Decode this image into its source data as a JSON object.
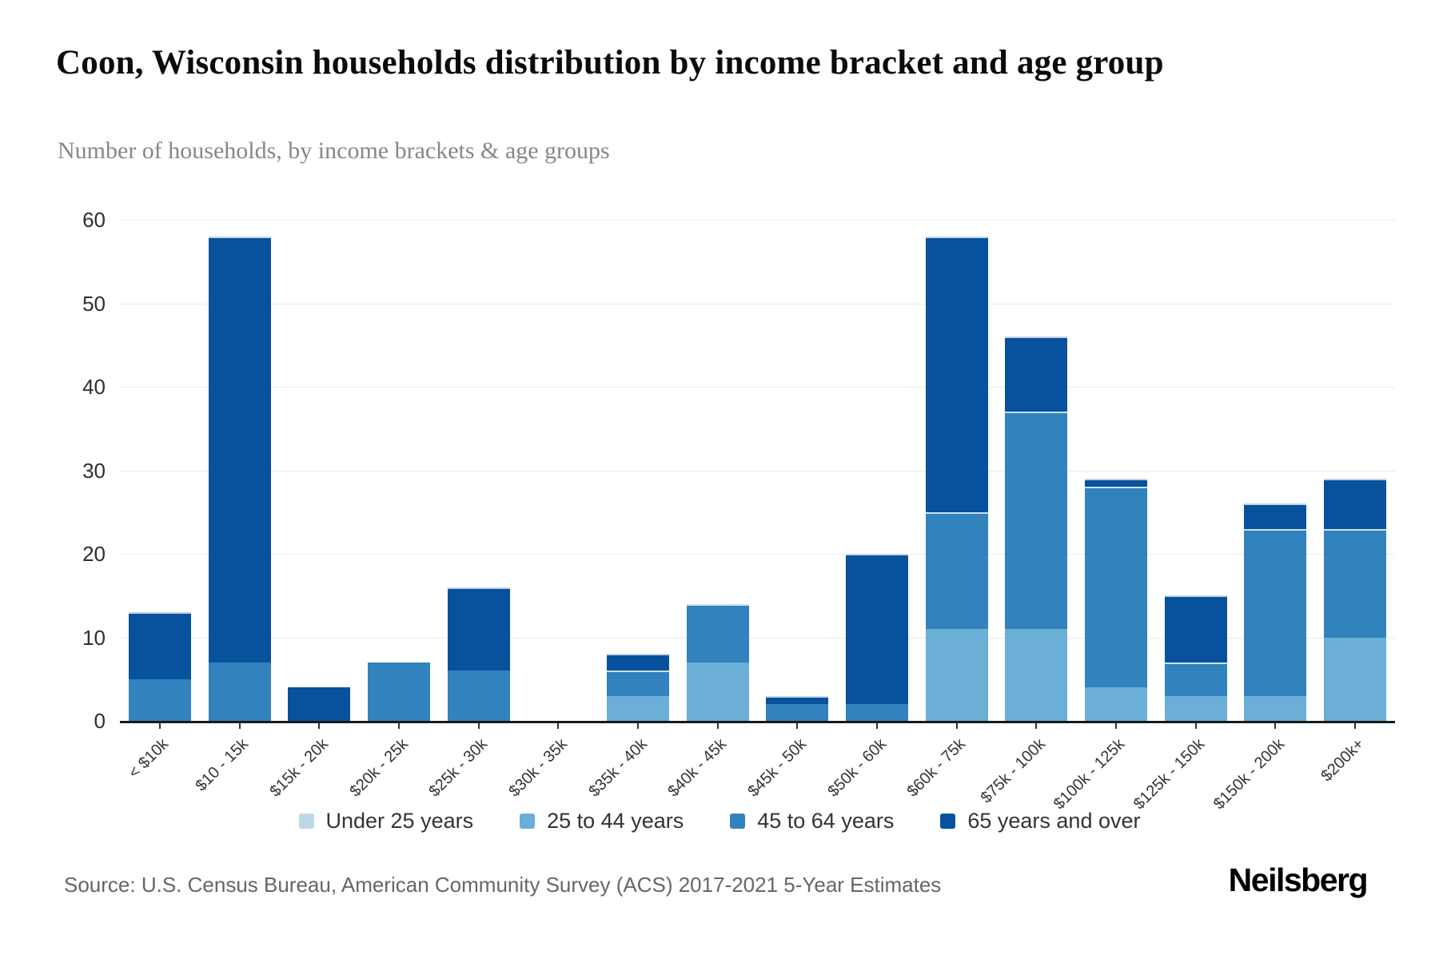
{
  "page": {
    "title": "Coon, Wisconsin households distribution by income bracket and age group",
    "subtitle": "Number of households, by income brackets & age groups",
    "source": "Source: U.S. Census Bureau, American Community Survey (ACS) 2017-2021 5-Year Estimates",
    "brand": "Neilsberg"
  },
  "chart_data": {
    "type": "bar",
    "stacked": true,
    "title": "Coon, Wisconsin households distribution by income bracket and age group",
    "subtitle": "Number of households, by income brackets & age groups",
    "xlabel": "",
    "ylabel": "Number of households",
    "ylim": [
      0,
      60
    ],
    "yticks": [
      0,
      10,
      20,
      30,
      40,
      50,
      60
    ],
    "grid": "horizontal",
    "legend_position": "bottom",
    "categories": [
      "< $10k",
      "$10 - 15k",
      "$15k - 20k",
      "$20k - 25k",
      "$25k - 30k",
      "$30k - 35k",
      "$35k - 40k",
      "$40k - 45k",
      "$45k - 50k",
      "$50k - 60k",
      "$60k - 75k",
      "$75k - 100k",
      "$100k - 125k",
      "$125k - 150k",
      "$150k - 200k",
      "$200k+"
    ],
    "series": [
      {
        "name": "Under 25 years",
        "color": "#bdd7e7",
        "values": [
          0,
          0,
          0,
          0,
          0,
          0,
          0,
          0,
          0,
          0,
          0,
          0,
          0,
          0,
          0,
          0
        ]
      },
      {
        "name": "25 to 44 years",
        "color": "#6baed6",
        "values": [
          0,
          0,
          0,
          0,
          0,
          0,
          3,
          7,
          0,
          0,
          11,
          11,
          4,
          3,
          3,
          10
        ]
      },
      {
        "name": "45 to 64 years",
        "color": "#3182bd",
        "values": [
          5,
          7,
          0,
          7,
          6,
          0,
          3,
          7,
          2,
          2,
          14,
          26,
          24,
          4,
          20,
          13
        ]
      },
      {
        "name": "65 years and over",
        "color": "#08519c",
        "values": [
          8,
          51,
          4,
          0,
          10,
          0,
          2,
          0,
          1,
          18,
          33,
          9,
          1,
          8,
          3,
          6
        ]
      }
    ],
    "totals": [
      13,
      58,
      4,
      7,
      16,
      0,
      8,
      14,
      3,
      20,
      58,
      46,
      29,
      15,
      26,
      29
    ]
  }
}
